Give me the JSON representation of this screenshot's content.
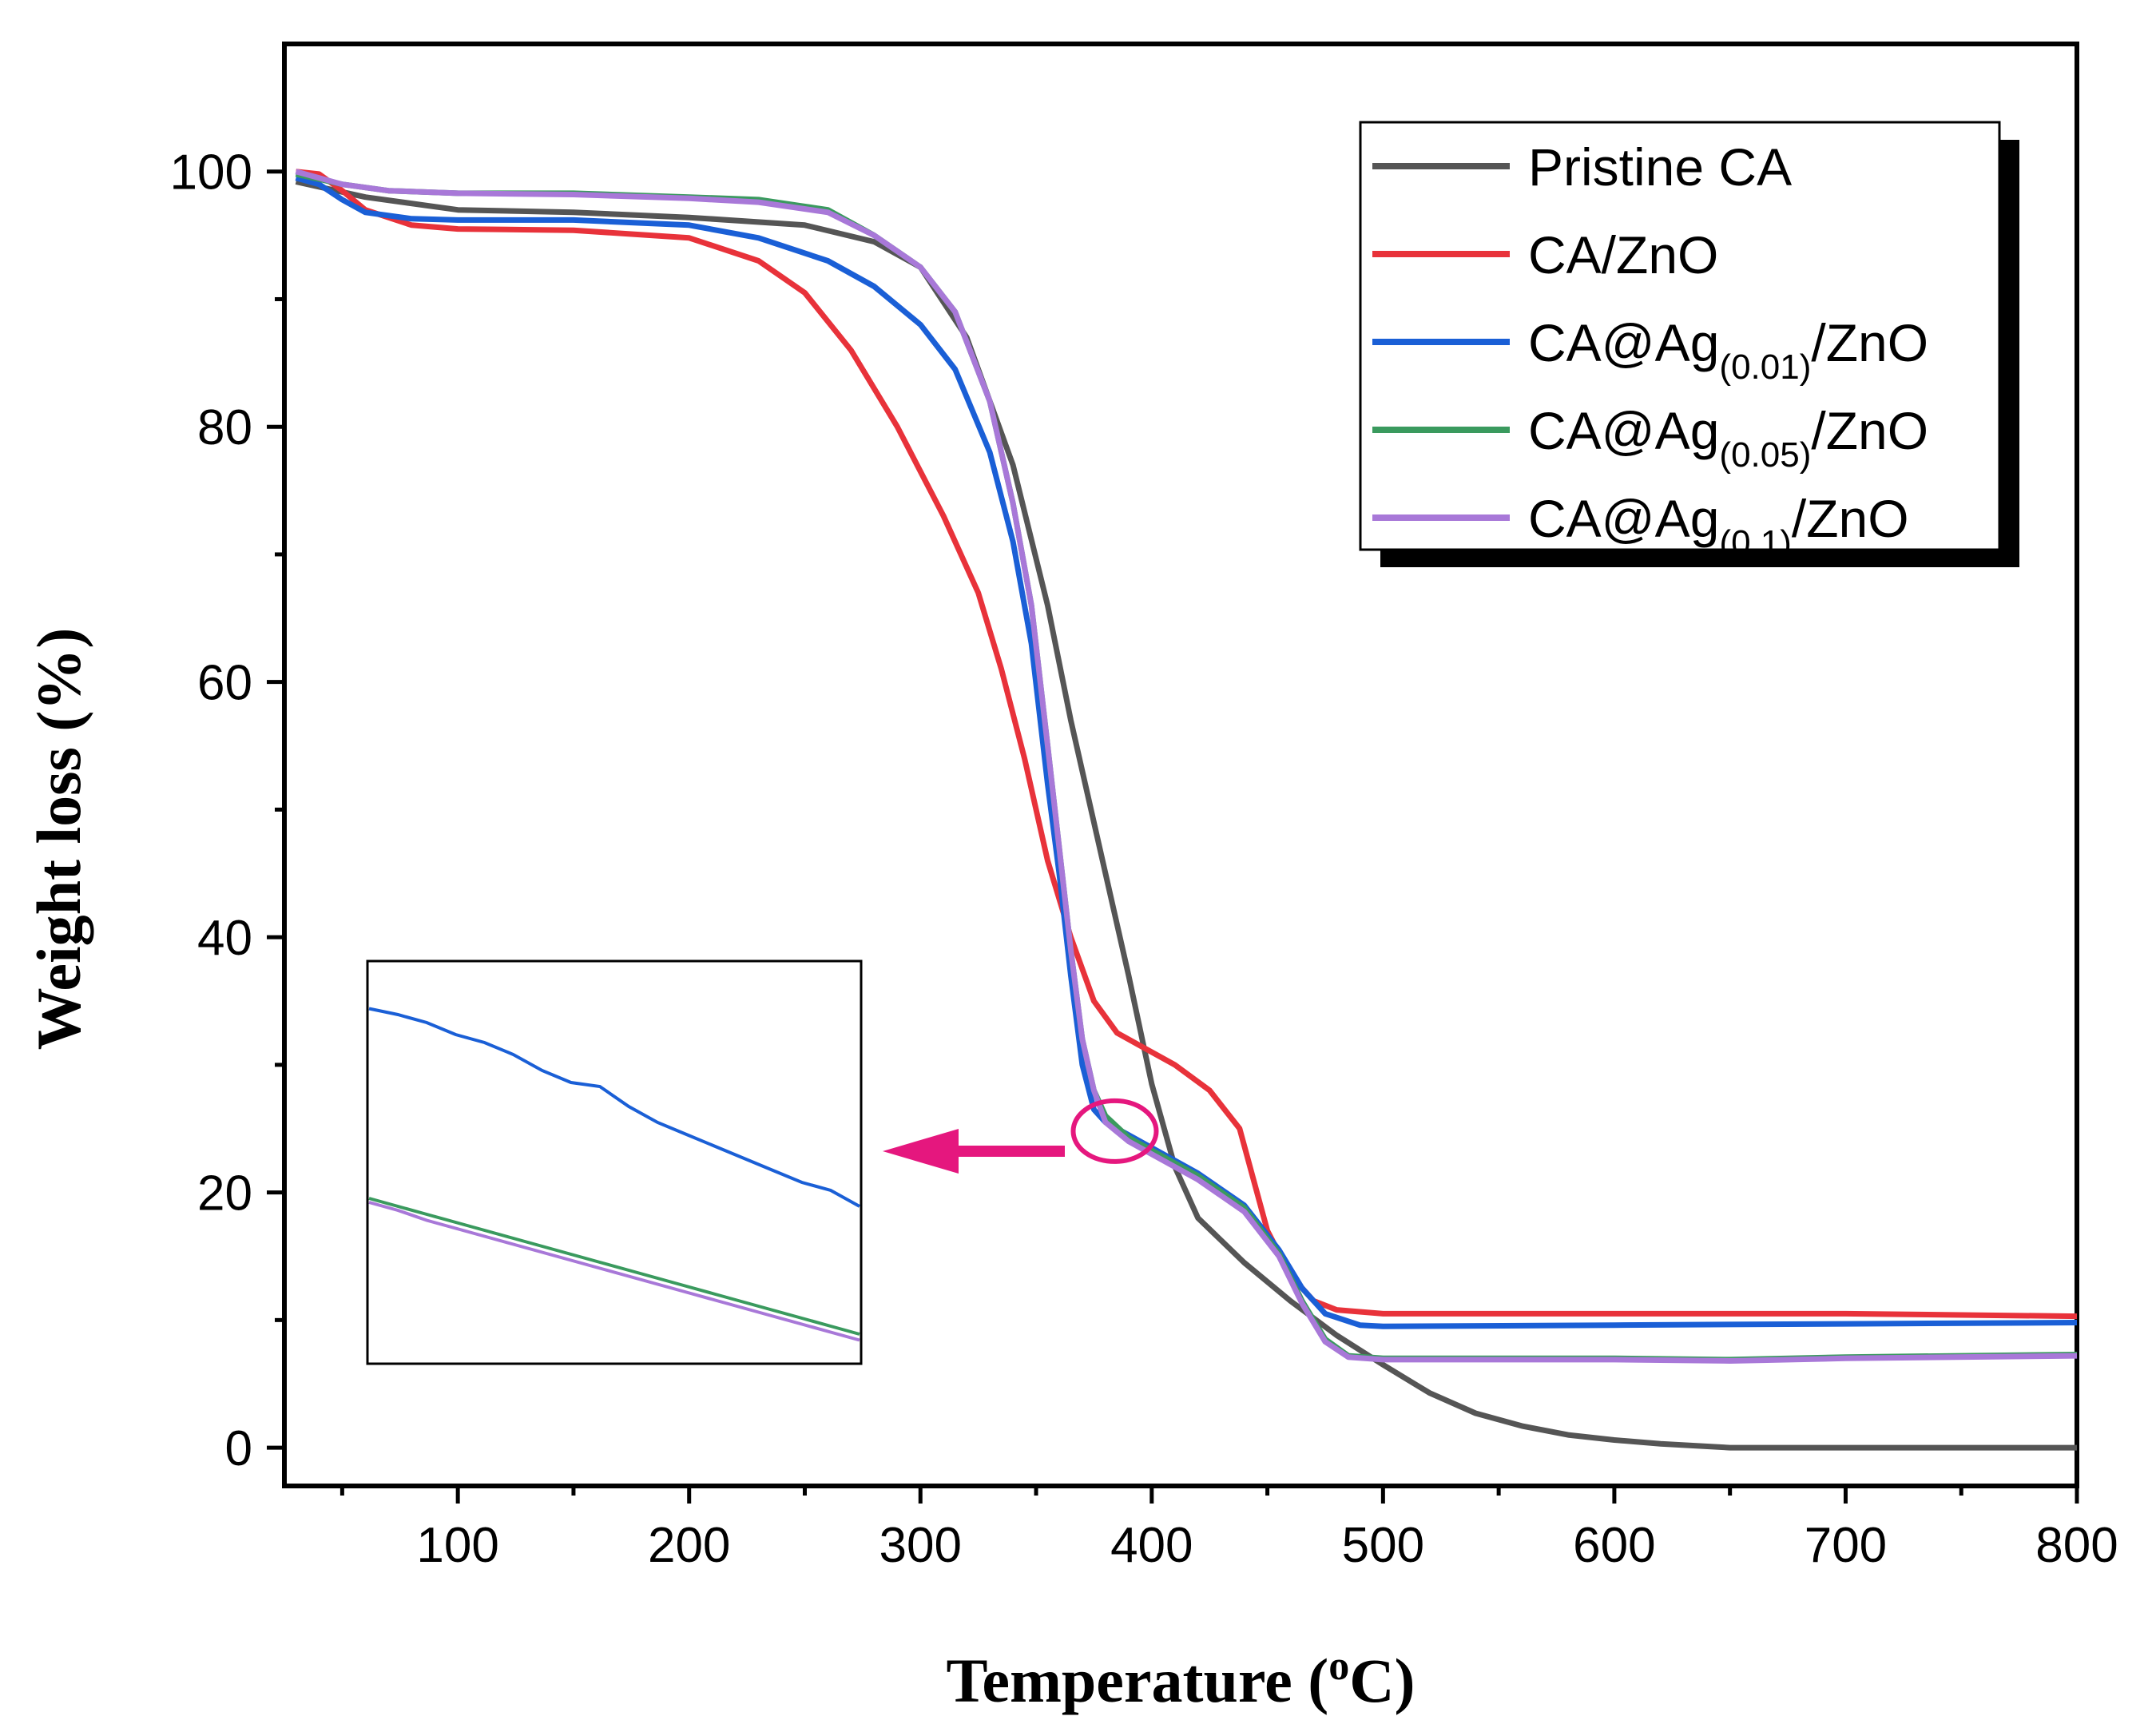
{
  "chart_data": {
    "type": "line",
    "title": "",
    "xlabel_main": "Temperature (",
    "xlabel_sup": "o",
    "xlabel_end": "C)",
    "ylabel": "Weight loss (%)",
    "xlim": [
      25,
      800
    ],
    "ylim": [
      -3,
      110
    ],
    "x_ticks": [
      100,
      200,
      300,
      400,
      500,
      600,
      700,
      800
    ],
    "y_ticks": [
      0,
      20,
      40,
      60,
      80,
      100
    ],
    "grid": false,
    "legend_position": "top-right",
    "series": [
      {
        "name": "Pristine CA",
        "legend_main": "Pristine CA",
        "legend_sub": "",
        "legend_end": "",
        "color": "#555555",
        "points": [
          [
            30,
            99.2
          ],
          [
            60,
            98.0
          ],
          [
            100,
            97.0
          ],
          [
            150,
            96.8
          ],
          [
            200,
            96.4
          ],
          [
            250,
            95.8
          ],
          [
            280,
            94.5
          ],
          [
            300,
            92.5
          ],
          [
            320,
            87.0
          ],
          [
            340,
            77.0
          ],
          [
            355,
            66.0
          ],
          [
            365,
            57.0
          ],
          [
            380,
            45.0
          ],
          [
            390,
            37.0
          ],
          [
            400,
            28.5
          ],
          [
            410,
            22.0
          ],
          [
            420,
            18.0
          ],
          [
            440,
            14.5
          ],
          [
            460,
            11.5
          ],
          [
            480,
            8.8
          ],
          [
            500,
            6.5
          ],
          [
            520,
            4.3
          ],
          [
            540,
            2.7
          ],
          [
            560,
            1.7
          ],
          [
            580,
            1.0
          ],
          [
            600,
            0.6
          ],
          [
            620,
            0.3
          ],
          [
            650,
            0.0
          ],
          [
            700,
            0.0
          ],
          [
            750,
            0.0
          ],
          [
            800,
            0.0
          ]
        ]
      },
      {
        "name": "CA/ZnO",
        "legend_main": "CA/ZnO",
        "legend_sub": "",
        "legend_end": "",
        "color": "#e8323a",
        "points": [
          [
            30,
            100
          ],
          [
            40,
            99.8
          ],
          [
            50,
            98.5
          ],
          [
            60,
            97.0
          ],
          [
            80,
            95.8
          ],
          [
            100,
            95.5
          ],
          [
            150,
            95.4
          ],
          [
            200,
            94.8
          ],
          [
            230,
            93.0
          ],
          [
            250,
            90.5
          ],
          [
            270,
            86.0
          ],
          [
            290,
            80.0
          ],
          [
            310,
            73.0
          ],
          [
            325,
            67.0
          ],
          [
            335,
            61.0
          ],
          [
            345,
            54.0
          ],
          [
            355,
            46.0
          ],
          [
            365,
            40.0
          ],
          [
            375,
            35.0
          ],
          [
            385,
            32.5
          ],
          [
            395,
            31.5
          ],
          [
            410,
            30.0
          ],
          [
            425,
            28.0
          ],
          [
            438,
            25.0
          ],
          [
            450,
            17.0
          ],
          [
            460,
            13.5
          ],
          [
            470,
            11.5
          ],
          [
            480,
            10.8
          ],
          [
            500,
            10.5
          ],
          [
            600,
            10.5
          ],
          [
            700,
            10.5
          ],
          [
            800,
            10.3
          ]
        ]
      },
      {
        "name": "CA@Ag(0.01)/ZnO",
        "legend_main": "CA@Ag",
        "legend_sub": "(0.01)",
        "legend_end": "/ZnO",
        "color": "#1a5fd6",
        "points": [
          [
            30,
            99.5
          ],
          [
            40,
            99.0
          ],
          [
            50,
            97.8
          ],
          [
            60,
            96.8
          ],
          [
            80,
            96.3
          ],
          [
            100,
            96.2
          ],
          [
            150,
            96.2
          ],
          [
            200,
            95.8
          ],
          [
            230,
            94.8
          ],
          [
            260,
            93.0
          ],
          [
            280,
            91.0
          ],
          [
            300,
            88.0
          ],
          [
            315,
            84.5
          ],
          [
            330,
            78.0
          ],
          [
            340,
            71.0
          ],
          [
            348,
            63.0
          ],
          [
            355,
            52.0
          ],
          [
            360,
            45.0
          ],
          [
            365,
            37.0
          ],
          [
            370,
            30.0
          ],
          [
            375,
            26.5
          ],
          [
            380,
            25.5
          ],
          [
            390,
            24.5
          ],
          [
            400,
            23.5
          ],
          [
            420,
            21.5
          ],
          [
            440,
            19.0
          ],
          [
            455,
            15.5
          ],
          [
            465,
            12.5
          ],
          [
            475,
            10.5
          ],
          [
            490,
            9.6
          ],
          [
            500,
            9.5
          ],
          [
            600,
            9.6
          ],
          [
            700,
            9.7
          ],
          [
            800,
            9.8
          ]
        ]
      },
      {
        "name": "CA@Ag(0.05)/ZnO",
        "legend_main": "CA@Ag",
        "legend_sub": "(0.05)",
        "legend_end": "/ZnO",
        "color": "#3a9a5e",
        "points": [
          [
            30,
            99.8
          ],
          [
            50,
            99.0
          ],
          [
            70,
            98.5
          ],
          [
            100,
            98.3
          ],
          [
            150,
            98.3
          ],
          [
            200,
            98.0
          ],
          [
            230,
            97.8
          ],
          [
            260,
            97.0
          ],
          [
            280,
            95.0
          ],
          [
            300,
            92.5
          ],
          [
            315,
            89.0
          ],
          [
            330,
            82.0
          ],
          [
            340,
            74.0
          ],
          [
            348,
            66.0
          ],
          [
            355,
            55.0
          ],
          [
            360,
            47.0
          ],
          [
            365,
            39.0
          ],
          [
            370,
            32.0
          ],
          [
            375,
            28.0
          ],
          [
            380,
            26.0
          ],
          [
            390,
            24.3
          ],
          [
            400,
            23.3
          ],
          [
            420,
            21.3
          ],
          [
            440,
            18.8
          ],
          [
            455,
            15.2
          ],
          [
            465,
            11.5
          ],
          [
            475,
            8.5
          ],
          [
            485,
            7.2
          ],
          [
            500,
            7.0
          ],
          [
            600,
            7.0
          ],
          [
            650,
            6.9
          ],
          [
            700,
            7.1
          ],
          [
            800,
            7.3
          ]
        ]
      },
      {
        "name": "CA@Ag(0.1)/ZnO",
        "legend_main": "CA@Ag",
        "legend_sub": "(0.1)",
        "legend_end": "/ZnO",
        "color": "#a878d8",
        "points": [
          [
            30,
            100
          ],
          [
            50,
            99.0
          ],
          [
            70,
            98.5
          ],
          [
            100,
            98.3
          ],
          [
            150,
            98.2
          ],
          [
            200,
            97.9
          ],
          [
            230,
            97.6
          ],
          [
            260,
            96.8
          ],
          [
            280,
            95.0
          ],
          [
            300,
            92.5
          ],
          [
            315,
            89.0
          ],
          [
            330,
            82.0
          ],
          [
            340,
            74.0
          ],
          [
            348,
            66.0
          ],
          [
            355,
            55.0
          ],
          [
            360,
            47.0
          ],
          [
            365,
            39.0
          ],
          [
            370,
            32.0
          ],
          [
            375,
            28.0
          ],
          [
            380,
            25.5
          ],
          [
            390,
            24.0
          ],
          [
            400,
            23.0
          ],
          [
            420,
            21.0
          ],
          [
            440,
            18.5
          ],
          [
            455,
            15.0
          ],
          [
            465,
            11.3
          ],
          [
            475,
            8.3
          ],
          [
            485,
            7.1
          ],
          [
            500,
            6.9
          ],
          [
            600,
            6.9
          ],
          [
            650,
            6.8
          ],
          [
            700,
            7.0
          ],
          [
            800,
            7.2
          ]
        ]
      }
    ],
    "inset": {
      "description": "zoom of region near 380-395 C",
      "marker_center": [
        384,
        24.8
      ],
      "series": [
        {
          "color": "#1a5fd6",
          "values": [
            0.115,
            0.13,
            0.15,
            0.18,
            0.2,
            0.23,
            0.27,
            0.3,
            0.31,
            0.36,
            0.4,
            0.43,
            0.46,
            0.49,
            0.52,
            0.55,
            0.57,
            0.61
          ]
        },
        {
          "color": "#3a9a5e",
          "values": [
            0.59,
            0.61,
            0.63,
            0.65,
            0.67,
            0.69,
            0.71,
            0.73,
            0.75,
            0.77,
            0.79,
            0.81,
            0.83,
            0.85,
            0.87,
            0.89,
            0.91,
            0.93
          ]
        },
        {
          "color": "#a878d8",
          "values": [
            0.6,
            0.62,
            0.645,
            0.665,
            0.685,
            0.705,
            0.725,
            0.745,
            0.765,
            0.785,
            0.805,
            0.825,
            0.845,
            0.865,
            0.885,
            0.905,
            0.925,
            0.945
          ]
        }
      ],
      "arrow_color": "#e5177e"
    }
  }
}
